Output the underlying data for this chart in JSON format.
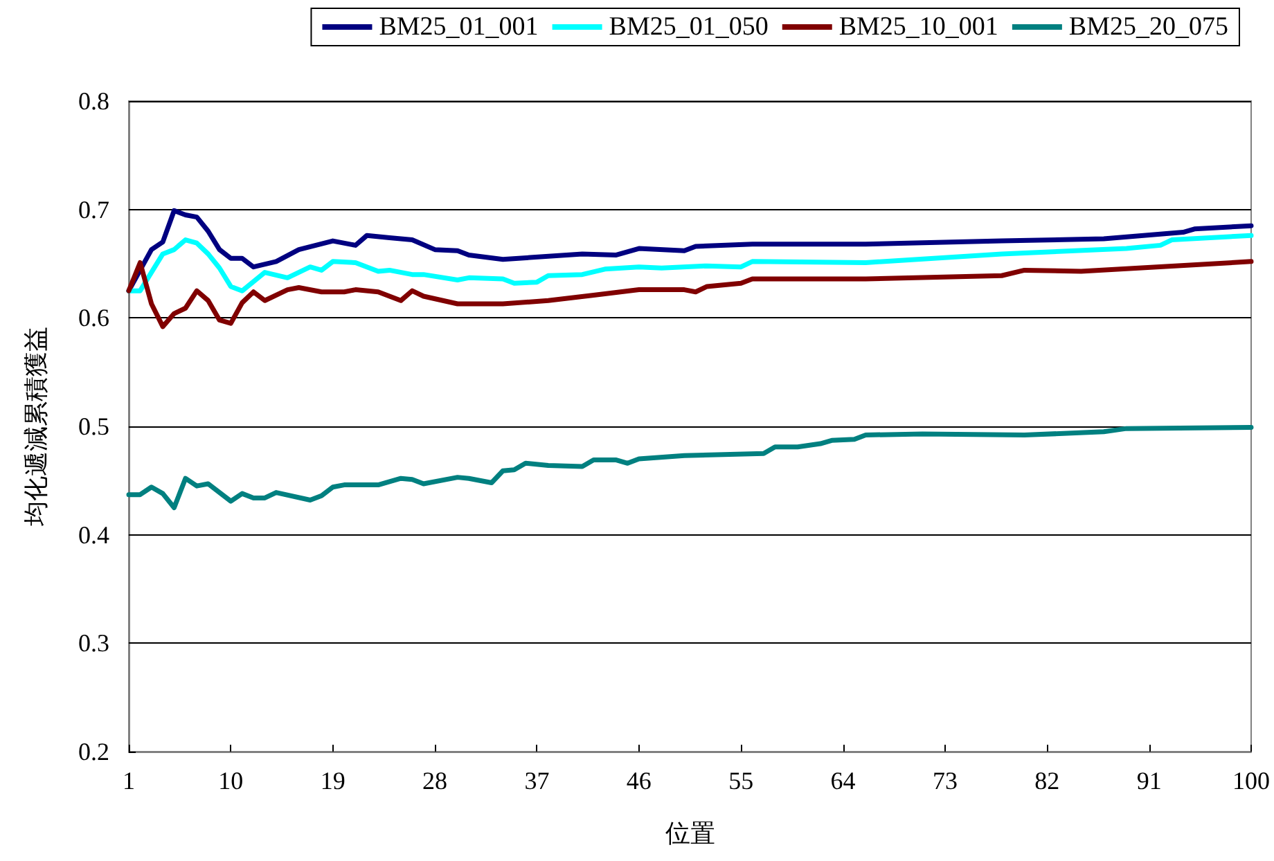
{
  "chart_data": {
    "type": "line",
    "xlabel": "位置",
    "ylabel": "均化遞減累積獲益",
    "xlim": [
      1,
      100
    ],
    "xticks": [
      1,
      10,
      19,
      28,
      37,
      46,
      55,
      64,
      73,
      82,
      91,
      100
    ],
    "ylim": [
      0.2,
      0.8
    ],
    "yticks": [
      0.2,
      0.3,
      0.4,
      0.5,
      0.6,
      0.7,
      0.8
    ],
    "grid": "y",
    "legend": "top",
    "marker": "none",
    "line_style": "solid",
    "series": [
      {
        "name": "BM25_01_001",
        "color": "#000080",
        "x": [
          1,
          3,
          4,
          5,
          6,
          7,
          8,
          9,
          10,
          11,
          12,
          14,
          16,
          19,
          21,
          22,
          24,
          26,
          28,
          30,
          31,
          34,
          41,
          44,
          46,
          50,
          51,
          56,
          66,
          78,
          87,
          94,
          95,
          100
        ],
        "values": [
          0.625,
          0.663,
          0.67,
          0.699,
          0.695,
          0.693,
          0.68,
          0.663,
          0.655,
          0.655,
          0.647,
          0.652,
          0.663,
          0.671,
          0.667,
          0.676,
          0.674,
          0.672,
          0.663,
          0.662,
          0.658,
          0.654,
          0.659,
          0.658,
          0.664,
          0.662,
          0.666,
          0.668,
          0.668,
          0.671,
          0.673,
          0.679,
          0.682,
          0.685
        ]
      },
      {
        "name": "BM25_01_050",
        "color": "#00ffff",
        "x": [
          1,
          2,
          4,
          5,
          6,
          7,
          8,
          9,
          10,
          11,
          13,
          15,
          17,
          18,
          19,
          21,
          23,
          24,
          26,
          27,
          30,
          31,
          34,
          35,
          37,
          38,
          41,
          43,
          46,
          48,
          52,
          55,
          56,
          66,
          78,
          89,
          92,
          93,
          100
        ],
        "values": [
          0.625,
          0.625,
          0.659,
          0.663,
          0.672,
          0.669,
          0.659,
          0.646,
          0.629,
          0.625,
          0.642,
          0.637,
          0.647,
          0.644,
          0.652,
          0.651,
          0.643,
          0.644,
          0.64,
          0.64,
          0.635,
          0.637,
          0.636,
          0.632,
          0.633,
          0.639,
          0.64,
          0.645,
          0.647,
          0.646,
          0.648,
          0.647,
          0.652,
          0.651,
          0.659,
          0.664,
          0.667,
          0.672,
          0.676
        ]
      },
      {
        "name": "BM25_10_001",
        "color": "#800000",
        "x": [
          1,
          2,
          3,
          4,
          5,
          6,
          7,
          8,
          9,
          10,
          11,
          12,
          13,
          15,
          16,
          18,
          20,
          21,
          23,
          25,
          26,
          27,
          30,
          32,
          34,
          38,
          42,
          46,
          50,
          51,
          52,
          55,
          56,
          62,
          66,
          78,
          80,
          85,
          100
        ],
        "values": [
          0.625,
          0.651,
          0.613,
          0.592,
          0.604,
          0.609,
          0.625,
          0.616,
          0.598,
          0.595,
          0.614,
          0.624,
          0.616,
          0.626,
          0.628,
          0.624,
          0.624,
          0.626,
          0.624,
          0.616,
          0.625,
          0.62,
          0.613,
          0.613,
          0.613,
          0.616,
          0.621,
          0.626,
          0.626,
          0.624,
          0.629,
          0.632,
          0.636,
          0.636,
          0.636,
          0.639,
          0.644,
          0.643,
          0.652
        ]
      },
      {
        "name": "BM25_20_075",
        "color": "#008080",
        "x": [
          1,
          2,
          3,
          4,
          5,
          6,
          7,
          8,
          10,
          11,
          12,
          13,
          14,
          17,
          18,
          19,
          20,
          23,
          25,
          26,
          27,
          30,
          31,
          33,
          34,
          35,
          36,
          38,
          41,
          42,
          44,
          45,
          46,
          50,
          57,
          58,
          60,
          62,
          63,
          65,
          66,
          71,
          80,
          87,
          89,
          100
        ],
        "values": [
          0.437,
          0.437,
          0.444,
          0.438,
          0.425,
          0.452,
          0.445,
          0.447,
          0.431,
          0.438,
          0.434,
          0.434,
          0.439,
          0.432,
          0.436,
          0.444,
          0.446,
          0.446,
          0.452,
          0.451,
          0.447,
          0.453,
          0.452,
          0.448,
          0.459,
          0.46,
          0.466,
          0.464,
          0.463,
          0.469,
          0.469,
          0.466,
          0.47,
          0.473,
          0.475,
          0.481,
          0.481,
          0.484,
          0.487,
          0.488,
          0.492,
          0.493,
          0.492,
          0.495,
          0.498,
          0.499
        ]
      }
    ]
  }
}
